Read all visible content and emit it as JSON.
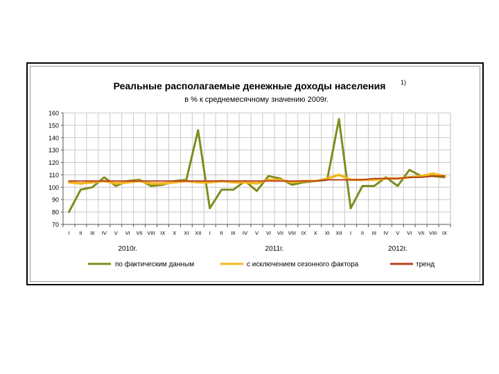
{
  "chart_data": {
    "type": "line",
    "title": "Реальные располагаемые денежные доходы населения",
    "title_sup": "1)",
    "subtitle": "в % к среднемесячному значению 2009г.",
    "ylim": [
      70,
      160
    ],
    "yticks": [
      70,
      80,
      90,
      100,
      110,
      120,
      130,
      140,
      150,
      160
    ],
    "xticks": [
      "I",
      "II",
      "III",
      "IV",
      "V",
      "VI",
      "VII",
      "VIII",
      "IX",
      "X",
      "XI",
      "XII",
      "I",
      "II",
      "III",
      "IV",
      "V",
      "VI",
      "VII",
      "VIII",
      "IX",
      "X",
      "XI",
      "XII",
      "I",
      "II",
      "III",
      "IV",
      "V",
      "VI",
      "VII",
      "VIII",
      "IX"
    ],
    "years": [
      {
        "label": "2010г.",
        "index": 5
      },
      {
        "label": "2011г.",
        "index": 17.5
      },
      {
        "label": "2012г.",
        "index": 28
      }
    ],
    "grid": true,
    "legend_position": "bottom",
    "series": [
      {
        "name": "по фактическим данным",
        "color": "#7f8c1f",
        "values": [
          80,
          98,
          100,
          108,
          101,
          105,
          106,
          101,
          102,
          105,
          106,
          146,
          83,
          98,
          98,
          105,
          97,
          109,
          107,
          102,
          104,
          105,
          106,
          155,
          83,
          101,
          101,
          108,
          101,
          114,
          109,
          109,
          108
        ]
      },
      {
        "name": "с исключением сезонного фактора",
        "color": "#f4b81c",
        "values": [
          104,
          103,
          104,
          105,
          103,
          104,
          105,
          103,
          103,
          104,
          105,
          104,
          104,
          105,
          104,
          104,
          103,
          106,
          106,
          104,
          105,
          105,
          107,
          110,
          106,
          106,
          106,
          107,
          107,
          108,
          109,
          111,
          109
        ]
      },
      {
        "name": "тренд",
        "color": "#b5401c",
        "values": [
          105,
          105,
          105,
          105,
          105,
          105,
          105,
          105,
          105,
          105,
          105,
          105,
          105,
          105,
          105,
          105,
          105,
          105,
          105,
          105,
          105,
          105,
          106,
          106,
          106,
          106,
          107,
          107,
          107,
          108,
          108,
          109,
          109
        ]
      }
    ]
  }
}
